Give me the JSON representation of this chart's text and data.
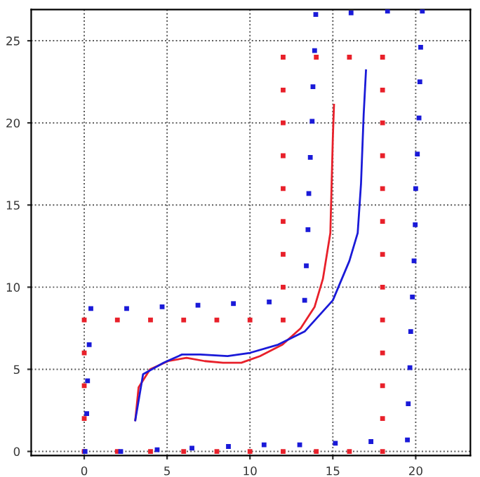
{
  "chart_data": {
    "type": "scatter",
    "xlim": [
      -3.2,
      23.3
    ],
    "ylim": [
      -0.25,
      26.9
    ],
    "xticks": [
      0,
      5,
      10,
      15,
      20
    ],
    "yticks": [
      0,
      5,
      10,
      15,
      20,
      25
    ],
    "grid": true,
    "marker": "square",
    "series": [
      {
        "color": "#e8202a",
        "x": [
          0,
          0,
          0,
          0,
          0,
          2,
          4,
          6,
          8,
          10,
          12,
          12,
          12,
          12,
          12,
          12,
          12,
          12,
          12,
          14,
          16,
          18,
          18,
          18,
          18,
          18,
          18,
          18,
          18,
          18,
          18,
          18,
          18,
          18,
          2,
          4,
          6,
          8,
          10,
          12,
          14,
          16
        ],
        "values": [
          0,
          2,
          4,
          6,
          8,
          8,
          8,
          8,
          8,
          8,
          8,
          10,
          12,
          14,
          16,
          18,
          20,
          22,
          24,
          24,
          24,
          24,
          22,
          20,
          18,
          16,
          14,
          12,
          10,
          8,
          6,
          4,
          2,
          0,
          0,
          0,
          0,
          0,
          0,
          0,
          0,
          0
        ]
      },
      {
        "color": "#1a1ad8",
        "x": [
          0.05,
          0.15,
          0.2,
          0.3,
          0.4,
          2.56,
          4.7,
          6.86,
          9.0,
          11.16,
          13.3,
          13.4,
          13.5,
          13.55,
          13.64,
          13.75,
          13.8,
          13.9,
          13.97,
          16.1,
          18.3,
          20.4,
          20.3,
          20.25,
          20.2,
          20.1,
          20.0,
          19.97,
          19.9,
          19.8,
          19.7,
          19.65,
          19.55,
          19.5,
          17.3,
          15.15,
          13.0,
          10.85,
          8.7,
          6.5,
          4.4,
          2.2
        ],
        "values": [
          0,
          2.3,
          4.3,
          6.5,
          8.7,
          8.7,
          8.8,
          8.9,
          9.0,
          9.1,
          9.2,
          11.3,
          13.5,
          15.7,
          17.9,
          20.1,
          22.2,
          24.4,
          26.6,
          26.7,
          26.8,
          26.8,
          24.6,
          22.5,
          20.3,
          18.1,
          16.0,
          13.8,
          11.6,
          9.4,
          7.3,
          5.1,
          2.9,
          0.7,
          0.6,
          0.5,
          0.4,
          0.4,
          0.3,
          0.2,
          0.1,
          0.0
        ]
      },
      {
        "type": "line",
        "color": "#e8202a",
        "marker": "none",
        "x": [
          3.08,
          3.28,
          3.97,
          5.07,
          6.17,
          7.27,
          8.37,
          9.48,
          10.6,
          11.96,
          13.06,
          13.9,
          14.4,
          14.85,
          15.0,
          15.07
        ],
        "values": [
          1.9,
          3.9,
          5.0,
          5.5,
          5.7,
          5.5,
          5.4,
          5.4,
          5.8,
          6.5,
          7.5,
          8.8,
          10.5,
          13.3,
          19.1,
          21.1
        ]
      },
      {
        "type": "line",
        "color": "#1a1ad8",
        "marker": "none",
        "x": [
          3.08,
          3.55,
          4.8,
          5.9,
          7.0,
          8.65,
          10.0,
          11.7,
          13.3,
          15.0,
          16.0,
          16.5,
          16.7,
          16.86,
          17.0
        ],
        "values": [
          1.9,
          4.7,
          5.4,
          5.9,
          5.9,
          5.8,
          6.0,
          6.5,
          7.3,
          9.2,
          11.6,
          13.3,
          16.3,
          20.5,
          23.2
        ]
      }
    ]
  }
}
